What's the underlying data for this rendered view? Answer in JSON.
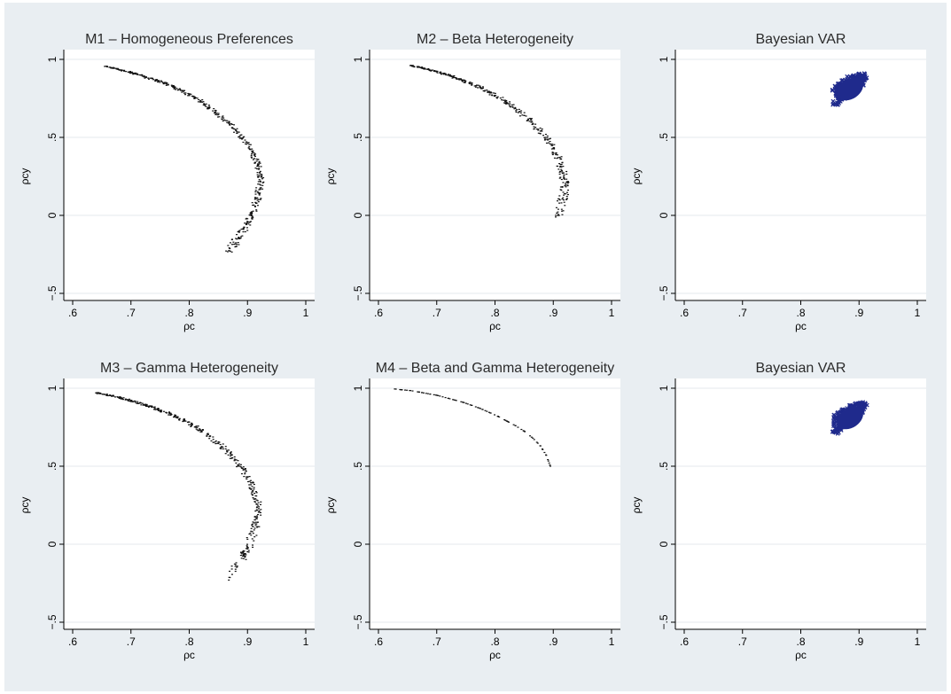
{
  "figure": {
    "background": "#ffffff",
    "outer_background": "#e9eef2",
    "plot_background": "#ffffff",
    "grid_color": "#e4e8ec",
    "axis_color": "#000000",
    "point_color": "#111111",
    "var_point_color": "#1f2a8c"
  },
  "chart_data": [
    {
      "type": "scatter",
      "title": "M1 – Homogeneous Preferences",
      "xlabel": "ρc",
      "ylabel": "ρcy",
      "xlim": [
        0.6,
        1.0
      ],
      "ylim": [
        -0.5,
        1.0
      ],
      "xticks": [
        ".6",
        ".7",
        ".8",
        ".9",
        "1"
      ],
      "yticks": [
        "−.5",
        "0",
        ".5",
        "1"
      ],
      "grid": true,
      "marker": "dot",
      "series": [
        {
          "points": [
            [
              0.655,
              0.955
            ],
            [
              0.67,
              0.945
            ],
            [
              0.685,
              0.93
            ],
            [
              0.7,
              0.915
            ],
            [
              0.715,
              0.9
            ],
            [
              0.73,
              0.88
            ],
            [
              0.745,
              0.865
            ],
            [
              0.76,
              0.845
            ],
            [
              0.775,
              0.82
            ],
            [
              0.79,
              0.795
            ],
            [
              0.805,
              0.765
            ],
            [
              0.82,
              0.73
            ],
            [
              0.835,
              0.69
            ],
            [
              0.85,
              0.645
            ],
            [
              0.865,
              0.595
            ],
            [
              0.88,
              0.545
            ],
            [
              0.892,
              0.495
            ],
            [
              0.903,
              0.44
            ],
            [
              0.912,
              0.385
            ],
            [
              0.918,
              0.33
            ],
            [
              0.921,
              0.275
            ],
            [
              0.922,
              0.22
            ],
            [
              0.92,
              0.165
            ],
            [
              0.917,
              0.11
            ],
            [
              0.913,
              0.06
            ],
            [
              0.907,
              0.01
            ],
            [
              0.9,
              -0.04
            ],
            [
              0.893,
              -0.09
            ],
            [
              0.885,
              -0.14
            ],
            [
              0.877,
              -0.185
            ],
            [
              0.87,
              -0.23
            ]
          ]
        }
      ]
    },
    {
      "type": "scatter",
      "title": "M2 – Beta Heterogeneity",
      "xlabel": "ρc",
      "ylabel": "ρcy",
      "xlim": [
        0.6,
        1.0
      ],
      "ylim": [
        -0.5,
        1.0
      ],
      "xticks": [
        ".6",
        ".7",
        ".8",
        ".9",
        "1"
      ],
      "yticks": [
        "−.5",
        "0",
        ".5",
        "1"
      ],
      "grid": true,
      "marker": "dot",
      "series": [
        {
          "points": [
            [
              0.655,
              0.96
            ],
            [
              0.67,
              0.95
            ],
            [
              0.685,
              0.935
            ],
            [
              0.7,
              0.92
            ],
            [
              0.715,
              0.905
            ],
            [
              0.73,
              0.885
            ],
            [
              0.745,
              0.865
            ],
            [
              0.76,
              0.845
            ],
            [
              0.775,
              0.82
            ],
            [
              0.79,
              0.79
            ],
            [
              0.805,
              0.76
            ],
            [
              0.82,
              0.725
            ],
            [
              0.835,
              0.685
            ],
            [
              0.85,
              0.64
            ],
            [
              0.865,
              0.59
            ],
            [
              0.878,
              0.54
            ],
            [
              0.89,
              0.485
            ],
            [
              0.9,
              0.43
            ],
            [
              0.908,
              0.37
            ],
            [
              0.914,
              0.31
            ],
            [
              0.918,
              0.25
            ],
            [
              0.92,
              0.19
            ],
            [
              0.918,
              0.13
            ],
            [
              0.914,
              0.08
            ],
            [
              0.91,
              0.0
            ]
          ]
        }
      ]
    },
    {
      "type": "scatter",
      "title": "Bayesian VAR",
      "xlabel": "ρc",
      "ylabel": "ρcy",
      "xlim": [
        0.6,
        1.0
      ],
      "ylim": [
        -0.5,
        1.0
      ],
      "xticks": [
        ".6",
        ".7",
        ".8",
        ".9",
        "1"
      ],
      "yticks": [
        "−.5",
        "0",
        ".5",
        "1"
      ],
      "grid": true,
      "marker": "x",
      "series": [
        {
          "points": [
            [
              0.86,
              0.72
            ],
            [
              0.865,
              0.74
            ],
            [
              0.87,
              0.76
            ],
            [
              0.872,
              0.78
            ],
            [
              0.875,
              0.8
            ],
            [
              0.88,
              0.82
            ],
            [
              0.885,
              0.83
            ],
            [
              0.89,
              0.84
            ],
            [
              0.895,
              0.85
            ],
            [
              0.9,
              0.86
            ],
            [
              0.905,
              0.875
            ],
            [
              0.908,
              0.89
            ],
            [
              0.905,
              0.9
            ],
            [
              0.895,
              0.895
            ],
            [
              0.885,
              0.88
            ],
            [
              0.875,
              0.86
            ],
            [
              0.868,
              0.84
            ],
            [
              0.862,
              0.82
            ],
            [
              0.86,
              0.8
            ],
            [
              0.862,
              0.77
            ],
            [
              0.878,
              0.79
            ],
            [
              0.888,
              0.81
            ],
            [
              0.896,
              0.83
            ],
            [
              0.902,
              0.845
            ],
            [
              0.87,
              0.75
            ],
            [
              0.876,
              0.77
            ],
            [
              0.892,
              0.86
            ],
            [
              0.9,
              0.88
            ],
            [
              0.883,
              0.85
            ],
            [
              0.866,
              0.78
            ]
          ]
        }
      ]
    },
    {
      "type": "scatter",
      "title": "M3 – Gamma Heterogeneity",
      "xlabel": "ρc",
      "ylabel": "ρcy",
      "xlim": [
        0.6,
        1.0
      ],
      "ylim": [
        -0.5,
        1.0
      ],
      "xticks": [
        ".6",
        ".7",
        ".8",
        ".9",
        "1"
      ],
      "yticks": [
        "−.5",
        "0",
        ".5",
        "1"
      ],
      "grid": true,
      "marker": "dot",
      "series": [
        {
          "points": [
            [
              0.64,
              0.97
            ],
            [
              0.655,
              0.96
            ],
            [
              0.67,
              0.95
            ],
            [
              0.685,
              0.935
            ],
            [
              0.7,
              0.92
            ],
            [
              0.715,
              0.905
            ],
            [
              0.73,
              0.885
            ],
            [
              0.745,
              0.865
            ],
            [
              0.76,
              0.845
            ],
            [
              0.775,
              0.82
            ],
            [
              0.79,
              0.795
            ],
            [
              0.805,
              0.765
            ],
            [
              0.82,
              0.73
            ],
            [
              0.835,
              0.69
            ],
            [
              0.85,
              0.645
            ],
            [
              0.865,
              0.595
            ],
            [
              0.878,
              0.545
            ],
            [
              0.89,
              0.49
            ],
            [
              0.9,
              0.43
            ],
            [
              0.908,
              0.37
            ],
            [
              0.914,
              0.31
            ],
            [
              0.918,
              0.25
            ],
            [
              0.918,
              0.19
            ],
            [
              0.914,
              0.13
            ],
            [
              0.91,
              0.07
            ],
            [
              0.9,
              -0.03
            ],
            [
              0.895,
              -0.06
            ],
            [
              0.89,
              -0.09
            ],
            [
              0.868,
              -0.23
            ]
          ]
        }
      ]
    },
    {
      "type": "scatter",
      "title": "M4 – Beta and Gamma Heterogeneity",
      "xlabel": "ρc",
      "ylabel": "ρcy",
      "xlim": [
        0.6,
        1.0
      ],
      "ylim": [
        -0.5,
        1.0
      ],
      "xticks": [
        ".6",
        ".7",
        ".8",
        ".9",
        "1"
      ],
      "yticks": [
        "−.5",
        "0",
        ".5",
        "1"
      ],
      "grid": true,
      "marker": "dot",
      "series": [
        {
          "points": [
            [
              0.628,
              0.995
            ],
            [
              0.64,
              0.99
            ],
            [
              0.655,
              0.985
            ],
            [
              0.67,
              0.975
            ],
            [
              0.685,
              0.965
            ],
            [
              0.7,
              0.955
            ],
            [
              0.715,
              0.94
            ],
            [
              0.73,
              0.925
            ],
            [
              0.745,
              0.91
            ],
            [
              0.76,
              0.89
            ],
            [
              0.775,
              0.87
            ],
            [
              0.79,
              0.845
            ],
            [
              0.805,
              0.82
            ],
            [
              0.82,
              0.79
            ],
            [
              0.835,
              0.76
            ],
            [
              0.85,
              0.725
            ],
            [
              0.865,
              0.68
            ],
            [
              0.878,
              0.63
            ],
            [
              0.888,
              0.57
            ],
            [
              0.895,
              0.5
            ]
          ]
        }
      ]
    },
    {
      "type": "scatter",
      "title": "Bayesian VAR",
      "xlabel": "ρc",
      "ylabel": "ρcy",
      "xlim": [
        0.6,
        1.0
      ],
      "ylim": [
        -0.5,
        1.0
      ],
      "xticks": [
        ".6",
        ".7",
        ".8",
        ".9",
        "1"
      ],
      "yticks": [
        "−.5",
        "0",
        ".5",
        "1"
      ],
      "grid": true,
      "marker": "x",
      "series": [
        {
          "points": [
            [
              0.86,
              0.72
            ],
            [
              0.865,
              0.74
            ],
            [
              0.87,
              0.76
            ],
            [
              0.872,
              0.78
            ],
            [
              0.875,
              0.8
            ],
            [
              0.88,
              0.82
            ],
            [
              0.885,
              0.83
            ],
            [
              0.89,
              0.84
            ],
            [
              0.895,
              0.85
            ],
            [
              0.9,
              0.86
            ],
            [
              0.905,
              0.875
            ],
            [
              0.908,
              0.89
            ],
            [
              0.905,
              0.9
            ],
            [
              0.895,
              0.895
            ],
            [
              0.885,
              0.88
            ],
            [
              0.875,
              0.86
            ],
            [
              0.868,
              0.84
            ],
            [
              0.862,
              0.82
            ],
            [
              0.86,
              0.8
            ],
            [
              0.862,
              0.77
            ],
            [
              0.878,
              0.79
            ],
            [
              0.888,
              0.81
            ],
            [
              0.896,
              0.83
            ],
            [
              0.902,
              0.845
            ],
            [
              0.87,
              0.75
            ],
            [
              0.876,
              0.77
            ],
            [
              0.892,
              0.86
            ],
            [
              0.9,
              0.88
            ],
            [
              0.883,
              0.85
            ],
            [
              0.866,
              0.78
            ]
          ]
        }
      ]
    }
  ]
}
